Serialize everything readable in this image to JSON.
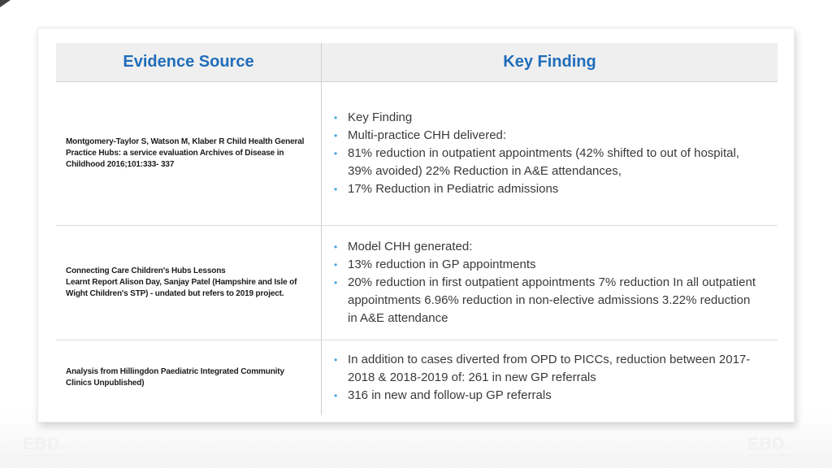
{
  "page": {
    "watermark": "EBD."
  },
  "colors": {
    "header_text": "#1f6dbb",
    "header_background": "#f0efef",
    "bullet": "#41a3dd",
    "body_text": "#3a3a3a",
    "source_text": "#1c1c1c",
    "divider": "#cfcfcf"
  },
  "glyphs": {
    "bullet": "•"
  },
  "table": {
    "headers": {
      "evidence_source": "Evidence Source",
      "key_finding": "Key Finding"
    },
    "rows": [
      {
        "source": [
          "Montgomery-Taylor S, Watson M, Klaber R Child Health General Practice Hubs: a service evaluation Archives of Disease in Childhood 2016;101:333- 337"
        ],
        "findings": [
          "Key Finding",
          "Multi-practice CHH delivered:",
          "81% reduction in outpatient appointments (42% shifted to out of hospital, 39% avoided) 22% Reduction in A&E attendances,",
          "17% Reduction in Pediatric admissions"
        ]
      },
      {
        "source": [
          "Connecting Care Children's Hubs Lessons",
          "Learnt Report Alison Day, Sanjay Patel (Hampshire and Isle of Wight Children's STP) - undated but refers to 2019 project."
        ],
        "findings": [
          "Model CHH generated:",
          "13% reduction in GP appointments",
          "20% reduction in first outpatient appointments 7% reduction In all outpatient appointments 6.96% reduction in non-elective admissions 3.22% reduction in A&E attendance"
        ]
      },
      {
        "source": [
          "Analysis from Hillingdon Paediatric Integrated Community Clinics Unpublished)"
        ],
        "findings": [
          "In addition to cases diverted from OPD to PICCs, reduction between 2017-2018 & 2018-2019 of: 261 in new GP referrals",
          "316 in new and follow-up GP referrals"
        ]
      }
    ]
  }
}
